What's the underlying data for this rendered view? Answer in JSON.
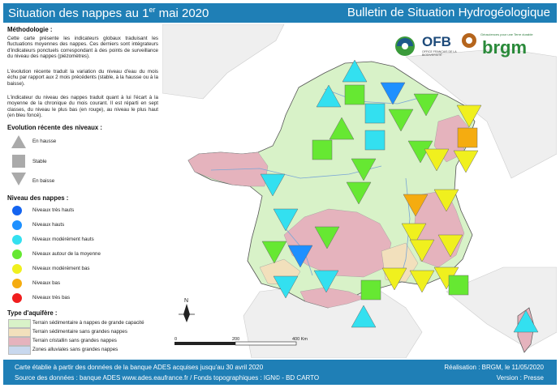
{
  "header": {
    "title_main": "Situation des nappes au 1",
    "title_sup": "er",
    "title_end": " mai 2020",
    "bulletin": "Bulletin de Situation Hydrogéologique"
  },
  "method": {
    "heading": "Méthodologie :",
    "p1": "Cette carte présente les indicateurs globaux traduisant les fluctuations moyennes des nappes. Ces derniers sont intégrateurs d'indicateurs ponctuels correspondant à des points de surveillance du niveau des nappes (piézomètres).",
    "p2": "L'évolution récente traduit la variation du niveau d'eau du mois échu par rapport aux 2 mois précédents (stable, à la hausse ou à la baisse).",
    "p3": "L'indicateur du niveau des nappes traduit quant à lui l'écart à la moyenne de la chronique du mois courant. Il est réparti en sept classes, du niveau le plus bas (en rouge), au niveau le plus haut (en bleu foncé)."
  },
  "evolution": {
    "heading": "Evolution récente des niveaux :",
    "items": [
      "En hausse",
      "Stable",
      "En baisse"
    ]
  },
  "levels": {
    "heading": "Niveau des nappes :",
    "items": [
      {
        "label": "Niveaux très hauts",
        "color": "#1464f0"
      },
      {
        "label": "Niveaux hauts",
        "color": "#1e90ff"
      },
      {
        "label": "Niveaux modérément hauts",
        "color": "#33e0f0"
      },
      {
        "label": "Niveaux autour de la moyenne",
        "color": "#66e832"
      },
      {
        "label": "Niveaux modérément bas",
        "color": "#f0f01e"
      },
      {
        "label": "Niveaux bas",
        "color": "#f5ac10"
      },
      {
        "label": "Niveaux très bas",
        "color": "#f01e1e"
      }
    ]
  },
  "aquifer": {
    "heading": "Type d'aquifère :",
    "items": [
      {
        "label": "Terrain sédimentaire à nappes de grande capacité",
        "color": "#d8f2c8"
      },
      {
        "label": "Terrain sédimentaire sans grandes nappes",
        "color": "#f2e0bc"
      },
      {
        "label": "Terrain cristallin sans grandes nappes",
        "color": "#e5b3bd"
      },
      {
        "label": "Zones alluviales sans grandes nappes",
        "color": "#c8d8ee"
      }
    ]
  },
  "logos": {
    "ofb": "OFB",
    "ofb_sub": "OFFICE FRANÇAIS DE LA BIODIVERSITÉ",
    "brgm": "brgm",
    "brgm_tag": "Géosciences pour une Terre durable"
  },
  "north": "N",
  "scale": {
    "ticks": [
      "0",
      "200",
      "400 Km"
    ]
  },
  "footer": {
    "l1": "Carte établie à partir des données de la banque ADES acquises jusqu'au 30 avril 2020",
    "l2": "Source des données : banque ADES www.ades.eaufrance.fr / Fonds topographiques : IGN© - BD CARTO",
    "r1": "Réalisation : BRGM, le 11/05/2020",
    "r2": "Version : Presse"
  }
}
